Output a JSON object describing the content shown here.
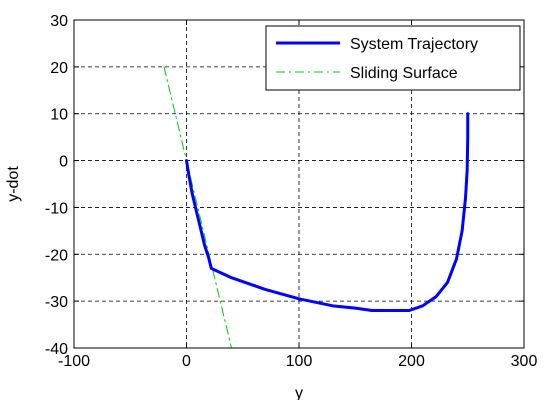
{
  "chart_data": {
    "type": "line",
    "title": "",
    "xlabel": "y",
    "ylabel": "y-dot",
    "xlim": [
      -100,
      300
    ],
    "ylim": [
      -40,
      30
    ],
    "xticks": [
      -100,
      0,
      100,
      200,
      300
    ],
    "yticks": [
      -40,
      -30,
      -20,
      -10,
      0,
      10,
      20,
      30
    ],
    "xtick_labels": [
      "-100",
      "0",
      "100",
      "200",
      "300"
    ],
    "ytick_labels": [
      "-40",
      "-30",
      "-20",
      "-10",
      "0",
      "10",
      "20",
      "30"
    ],
    "grid": true,
    "legend_position": "top-right",
    "series": [
      {
        "name": "System Trajectory",
        "color": "#0000ff",
        "style": "solid",
        "x": [
          0,
          2,
          5,
          8,
          12,
          16,
          20,
          22,
          40,
          70,
          100,
          130,
          150,
          165,
          180,
          198,
          210,
          222,
          232,
          240,
          245,
          248,
          249.5,
          250,
          250
        ],
        "y": [
          0,
          -3,
          -7,
          -10,
          -14,
          -18,
          -21,
          -23,
          -25,
          -27.5,
          -29.5,
          -31,
          -31.5,
          -32,
          -32,
          -32,
          -31,
          -29,
          -26,
          -21,
          -15,
          -8,
          -2,
          5,
          10
        ]
      },
      {
        "name": "Sliding Surface",
        "color": "#00cc00",
        "style": "dashdot",
        "x": [
          -20,
          40
        ],
        "y": [
          20,
          -40
        ]
      }
    ]
  }
}
